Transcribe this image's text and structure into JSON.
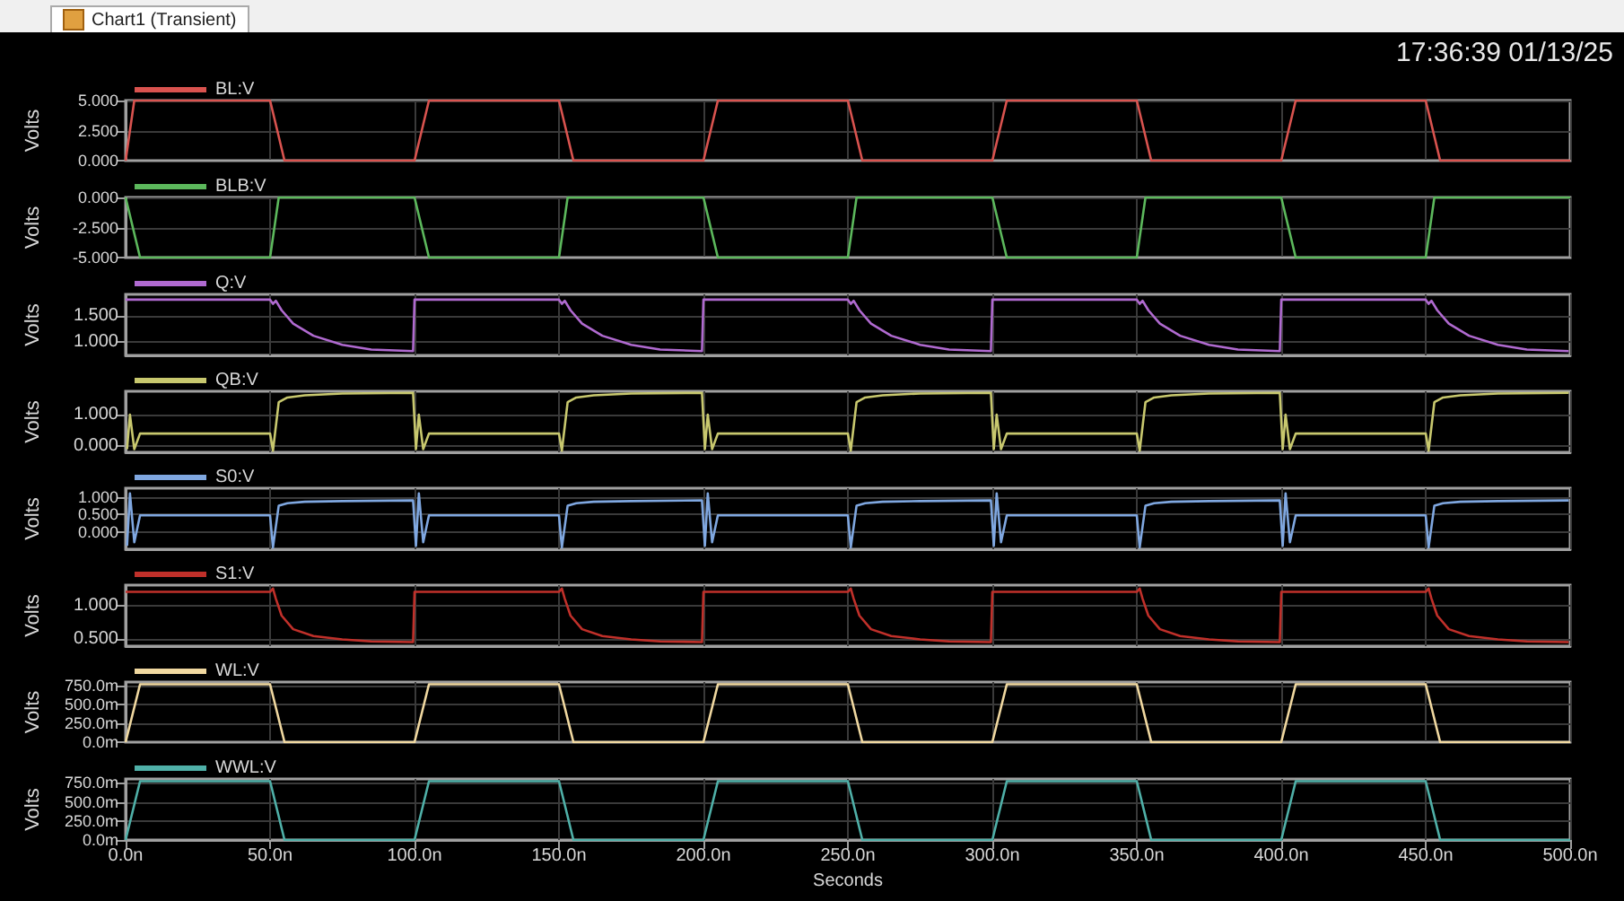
{
  "chart_data": [
    {
      "type": "line",
      "annotations": [
        "Chart1 (Transient)",
        "17:36:39 01/13/25"
      ],
      "ylabel": "Volts",
      "legend": "top left",
      "grid": true,
      "tick_labels": "y",
      "xlim": [
        0,
        500
      ],
      "ylim": [
        0,
        5
      ],
      "yticks": [
        {
          "value": 0,
          "label": "0.000"
        },
        {
          "value": 2.5,
          "label": "2.500"
        },
        {
          "value": 5,
          "label": "5.000"
        }
      ],
      "series": [
        {
          "name": "BL:V",
          "color": "#d9534f",
          "x": [
            0,
            3,
            50,
            55,
            100,
            105,
            150,
            155,
            200,
            205,
            250,
            255,
            300,
            305,
            350,
            355,
            400,
            405,
            450,
            455,
            500
          ],
          "values": [
            0,
            5,
            5,
            0,
            0,
            5,
            5,
            0,
            0,
            5,
            5,
            0,
            0,
            5,
            5,
            0,
            0,
            5,
            5,
            0,
            0
          ]
        }
      ]
    },
    {
      "type": "line",
      "ylabel": "Volts",
      "legend": "top left",
      "grid": true,
      "tick_labels": "y",
      "xlim": [
        0,
        500
      ],
      "ylim": [
        -5,
        0
      ],
      "yticks": [
        {
          "value": -5,
          "label": "-5.000"
        },
        {
          "value": -2.5,
          "label": "-2.500"
        },
        {
          "value": 0,
          "label": "0.000"
        }
      ],
      "series": [
        {
          "name": "BLB:V",
          "color": "#5cb85c",
          "x": [
            0,
            5,
            50,
            53,
            100,
            105,
            150,
            153,
            200,
            205,
            250,
            253,
            300,
            305,
            350,
            353,
            400,
            405,
            450,
            453,
            500
          ],
          "values": [
            0,
            -5,
            -5,
            0,
            0,
            -5,
            -5,
            0,
            0,
            -5,
            -5,
            0,
            0,
            -5,
            -5,
            0,
            0,
            -5,
            -5,
            0,
            0
          ]
        }
      ]
    },
    {
      "type": "line",
      "ylabel": "Volts",
      "legend": "top left",
      "grid": true,
      "tick_labels": "y",
      "xlim": [
        0,
        500
      ],
      "ylim": [
        0.75,
        1.9
      ],
      "yticks": [
        {
          "value": 1,
          "label": "1.000"
        },
        {
          "value": 1.5,
          "label": "1.500"
        }
      ],
      "series": [
        {
          "name": "Q:V",
          "color": "#b06ad0",
          "x": [
            0,
            50,
            51,
            52,
            54,
            58,
            65,
            75,
            85,
            99.5,
            100,
            150,
            151,
            152,
            154,
            158,
            165,
            175,
            185,
            199.5,
            200,
            250,
            251,
            252,
            254,
            258,
            265,
            275,
            285,
            299.5,
            300,
            350,
            351,
            352,
            354,
            358,
            365,
            375,
            385,
            399.5,
            400,
            450,
            451,
            452,
            454,
            458,
            465,
            475,
            485,
            499.5
          ],
          "values": [
            1.8,
            1.8,
            1.72,
            1.78,
            1.6,
            1.35,
            1.12,
            0.95,
            0.86,
            0.83,
            1.8,
            1.8,
            1.72,
            1.78,
            1.6,
            1.35,
            1.12,
            0.95,
            0.86,
            0.83,
            1.8,
            1.8,
            1.72,
            1.78,
            1.6,
            1.35,
            1.12,
            0.95,
            0.86,
            0.83,
            1.8,
            1.8,
            1.72,
            1.78,
            1.6,
            1.35,
            1.12,
            0.95,
            0.86,
            0.83,
            1.8,
            1.8,
            1.72,
            1.78,
            1.6,
            1.35,
            1.12,
            0.95,
            0.86,
            0.83
          ]
        }
      ]
    },
    {
      "type": "line",
      "ylabel": "Volts",
      "legend": "top left",
      "grid": true,
      "tick_labels": "y",
      "xlim": [
        0,
        500
      ],
      "ylim": [
        -0.2,
        1.75
      ],
      "yticks": [
        {
          "value": 0,
          "label": "0.000"
        },
        {
          "value": 1,
          "label": "1.000"
        }
      ],
      "series": [
        {
          "name": "QB:V",
          "color": "#c8c86e",
          "x": [
            0.5,
            1.5,
            3,
            5,
            50,
            51,
            53,
            56,
            62,
            75,
            99.5,
            100.5,
            101.5,
            103,
            105,
            150,
            151,
            153,
            156,
            162,
            175,
            199.5,
            200.5,
            201.5,
            203,
            205,
            250,
            251,
            253,
            256,
            262,
            275,
            299.5,
            300.5,
            301.5,
            303,
            305,
            350,
            351,
            353,
            356,
            362,
            375,
            399.5,
            400.5,
            401.5,
            403,
            405,
            450,
            451,
            453,
            456,
            462,
            475,
            499.5
          ],
          "values": [
            -0.1,
            1,
            -0.1,
            0.4,
            0.4,
            -0.15,
            1.4,
            1.55,
            1.62,
            1.68,
            1.7,
            -0.1,
            1,
            -0.1,
            0.4,
            0.4,
            -0.15,
            1.4,
            1.55,
            1.62,
            1.68,
            1.7,
            -0.1,
            1,
            -0.1,
            0.4,
            0.4,
            -0.15,
            1.4,
            1.55,
            1.62,
            1.68,
            1.7,
            -0.1,
            1,
            -0.1,
            0.4,
            0.4,
            -0.15,
            1.4,
            1.55,
            1.62,
            1.68,
            1.7,
            -0.1,
            1,
            -0.1,
            0.4,
            0.4,
            -0.15,
            1.4,
            1.55,
            1.62,
            1.68,
            1.7
          ]
        }
      ]
    },
    {
      "type": "line",
      "ylabel": "Volts",
      "legend": "top left",
      "grid": true,
      "tick_labels": "y",
      "xlim": [
        0,
        500
      ],
      "ylim": [
        -0.5,
        1.25
      ],
      "yticks": [
        {
          "value": 0,
          "label": "0.000"
        },
        {
          "value": 0.5,
          "label": "0.500"
        },
        {
          "value": 1,
          "label": "1.000"
        }
      ],
      "series": [
        {
          "name": "S0:V",
          "color": "#7fa7e0",
          "x": [
            0.5,
            1.5,
            3,
            5,
            50,
            51,
            53,
            56,
            62,
            75,
            99.5,
            100.5,
            101.5,
            103,
            105,
            150,
            151,
            153,
            156,
            162,
            175,
            199.5,
            200.5,
            201.5,
            203,
            205,
            250,
            251,
            253,
            256,
            262,
            275,
            299.5,
            300.5,
            301.5,
            303,
            305,
            350,
            351,
            353,
            356,
            362,
            375,
            399.5,
            400.5,
            401.5,
            403,
            405,
            450,
            451,
            453,
            456,
            462,
            475,
            499.5
          ],
          "values": [
            -0.4,
            1.1,
            -0.3,
            0.47,
            0.47,
            -0.45,
            0.75,
            0.82,
            0.86,
            0.88,
            0.9,
            -0.4,
            1.1,
            -0.3,
            0.47,
            0.47,
            -0.45,
            0.75,
            0.82,
            0.86,
            0.88,
            0.9,
            -0.4,
            1.1,
            -0.3,
            0.47,
            0.47,
            -0.45,
            0.75,
            0.82,
            0.86,
            0.88,
            0.9,
            -0.4,
            1.1,
            -0.3,
            0.47,
            0.47,
            -0.45,
            0.75,
            0.82,
            0.86,
            0.88,
            0.9,
            -0.4,
            1.1,
            -0.3,
            0.47,
            0.47,
            -0.45,
            0.75,
            0.82,
            0.86,
            0.88,
            0.9
          ]
        }
      ]
    },
    {
      "type": "line",
      "ylabel": "Volts",
      "legend": "top left",
      "grid": true,
      "tick_labels": "y",
      "xlim": [
        0,
        500
      ],
      "ylim": [
        0.4,
        1.3
      ],
      "yticks": [
        {
          "value": 0.5,
          "label": "0.500"
        },
        {
          "value": 1,
          "label": "1.000"
        }
      ],
      "series": [
        {
          "name": "S1:V",
          "color": "#c0302a",
          "x": [
            0,
            50,
            51,
            52,
            54,
            58,
            65,
            75,
            85,
            99.5,
            100,
            150,
            151,
            152,
            154,
            158,
            165,
            175,
            185,
            199.5,
            200,
            250,
            251,
            252,
            254,
            258,
            265,
            275,
            285,
            299.5,
            300,
            350,
            351,
            352,
            354,
            358,
            365,
            375,
            385,
            399.5,
            400,
            450,
            451,
            452,
            454,
            458,
            465,
            475,
            485,
            499.5
          ],
          "values": [
            1.2,
            1.2,
            1.25,
            1.1,
            0.85,
            0.65,
            0.55,
            0.5,
            0.47,
            0.46,
            1.2,
            1.2,
            1.25,
            1.1,
            0.85,
            0.65,
            0.55,
            0.5,
            0.47,
            0.46,
            1.2,
            1.2,
            1.25,
            1.1,
            0.85,
            0.65,
            0.55,
            0.5,
            0.47,
            0.46,
            1.2,
            1.2,
            1.25,
            1.1,
            0.85,
            0.65,
            0.55,
            0.5,
            0.47,
            0.46,
            1.2,
            1.2,
            1.25,
            1.1,
            0.85,
            0.65,
            0.55,
            0.5,
            0.47,
            0.46
          ]
        }
      ]
    },
    {
      "type": "line",
      "ylabel": "Volts",
      "legend": "top left",
      "grid": true,
      "tick_labels": "y",
      "xlim": [
        0,
        500
      ],
      "ylim": [
        0,
        800
      ],
      "yticks": [
        {
          "value": 0,
          "label": "0.0m"
        },
        {
          "value": 250,
          "label": "250.0m"
        },
        {
          "value": 500,
          "label": "500.0m"
        },
        {
          "value": 750,
          "label": "750.0m"
        }
      ],
      "series": [
        {
          "name": "WL:V",
          "color": "#f0d8a0",
          "x": [
            0,
            5,
            50,
            55,
            100,
            105,
            150,
            155,
            200,
            205,
            250,
            255,
            300,
            305,
            350,
            355,
            400,
            405,
            450,
            455,
            500
          ],
          "values": [
            0,
            770,
            770,
            0,
            0,
            770,
            770,
            0,
            0,
            770,
            770,
            0,
            0,
            770,
            770,
            0,
            0,
            770,
            770,
            0,
            0
          ]
        }
      ]
    },
    {
      "type": "line",
      "ylabel": "Volts",
      "xlabel": "Seconds",
      "legend": "top left",
      "grid": true,
      "xlim": [
        0,
        500
      ],
      "xticks": [
        {
          "value": 0,
          "label": "0.0n"
        },
        {
          "value": 50,
          "label": "50.0n"
        },
        {
          "value": 100,
          "label": "100.0n"
        },
        {
          "value": 150,
          "label": "150.0n"
        },
        {
          "value": 200,
          "label": "200.0n"
        },
        {
          "value": 250,
          "label": "250.0n"
        },
        {
          "value": 300,
          "label": "300.0n"
        },
        {
          "value": 350,
          "label": "350.0n"
        },
        {
          "value": 400,
          "label": "400.0n"
        },
        {
          "value": 450,
          "label": "450.0n"
        },
        {
          "value": 500,
          "label": "500.0n"
        }
      ],
      "ylim": [
        0,
        800
      ],
      "yticks": [
        {
          "value": 0,
          "label": "0.0m"
        },
        {
          "value": 250,
          "label": "250.0m"
        },
        {
          "value": 500,
          "label": "500.0m"
        },
        {
          "value": 750,
          "label": "750.0m"
        }
      ],
      "series": [
        {
          "name": "WWL:V",
          "color": "#4fb0a8",
          "x": [
            0,
            5,
            50,
            55,
            100,
            105,
            150,
            155,
            200,
            205,
            250,
            255,
            300,
            305,
            350,
            355,
            400,
            405,
            450,
            455,
            500
          ],
          "values": [
            0,
            770,
            770,
            0,
            0,
            770,
            770,
            0,
            0,
            770,
            770,
            0,
            0,
            770,
            770,
            0,
            0,
            770,
            770,
            0,
            0
          ]
        }
      ]
    }
  ]
}
